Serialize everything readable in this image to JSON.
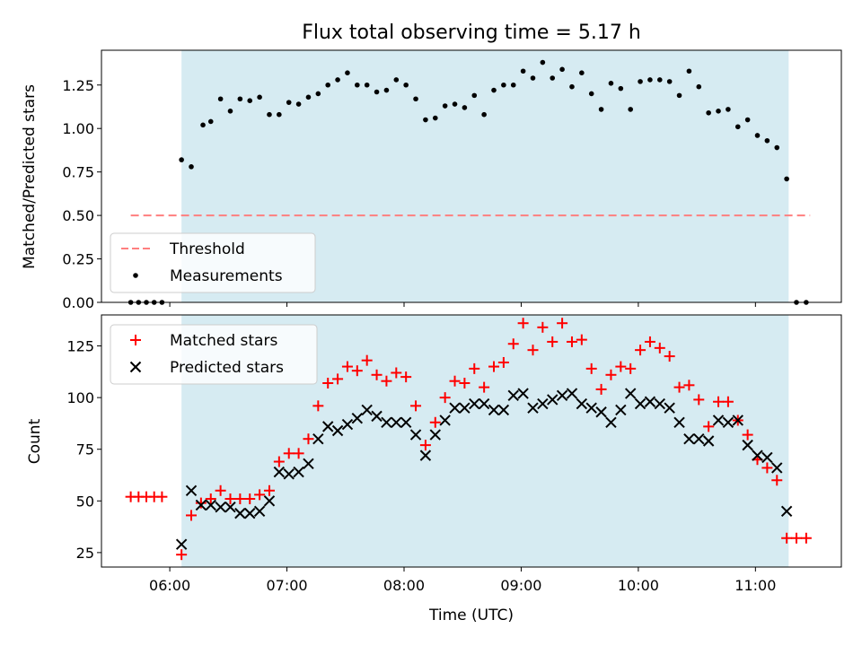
{
  "chart_data": [
    {
      "type": "scatter",
      "title": "Flux total observing time = 5.17 h",
      "xlabel": "",
      "ylabel": "Matched/Predicted stars",
      "ylim": [
        0,
        1.45
      ],
      "yticks": [
        0.0,
        0.25,
        0.5,
        0.75,
        1.0,
        1.25
      ],
      "ytick_labels": [
        "0.00",
        "0.25",
        "0.50",
        "0.75",
        "1.00",
        "1.25"
      ],
      "grid": false,
      "legend_position": "lower-left",
      "observing_window": {
        "start": "06:06",
        "end": "11:17",
        "color": "#add8e6"
      },
      "series": [
        {
          "name": "Threshold",
          "kind": "dashed-line",
          "color": "#ff7f7f",
          "x": [
            "05:40",
            "11:28"
          ],
          "y": [
            0.5,
            0.5
          ]
        },
        {
          "name": "Measurements",
          "kind": "dot",
          "color": "#000000",
          "x": [
            "05:40",
            "05:44",
            "05:48",
            "05:52",
            "05:56",
            "06:06",
            "06:11",
            "06:17",
            "06:21",
            "06:26",
            "06:31",
            "06:36",
            "06:41",
            "06:46",
            "06:51",
            "06:56",
            "07:01",
            "07:06",
            "07:11",
            "07:16",
            "07:21",
            "07:26",
            "07:31",
            "07:36",
            "07:41",
            "07:46",
            "07:51",
            "07:56",
            "08:01",
            "08:06",
            "08:11",
            "08:16",
            "08:21",
            "08:26",
            "08:31",
            "08:36",
            "08:41",
            "08:46",
            "08:51",
            "08:56",
            "09:01",
            "09:06",
            "09:11",
            "09:16",
            "09:21",
            "09:26",
            "09:31",
            "09:36",
            "09:41",
            "09:46",
            "09:51",
            "09:56",
            "10:01",
            "10:06",
            "10:11",
            "10:16",
            "10:21",
            "10:26",
            "10:31",
            "10:36",
            "10:41",
            "10:46",
            "10:51",
            "10:56",
            "11:01",
            "11:06",
            "11:11",
            "11:16",
            "11:21",
            "11:26"
          ],
          "y": [
            0.0,
            0.0,
            0.0,
            0.0,
            0.0,
            0.82,
            0.78,
            1.02,
            1.04,
            1.17,
            1.1,
            1.17,
            1.16,
            1.18,
            1.08,
            1.08,
            1.15,
            1.14,
            1.18,
            1.2,
            1.25,
            1.28,
            1.32,
            1.25,
            1.25,
            1.21,
            1.22,
            1.28,
            1.25,
            1.17,
            1.05,
            1.06,
            1.13,
            1.14,
            1.12,
            1.19,
            1.08,
            1.22,
            1.25,
            1.25,
            1.33,
            1.29,
            1.38,
            1.29,
            1.34,
            1.24,
            1.32,
            1.2,
            1.11,
            1.26,
            1.23,
            1.11,
            1.27,
            1.28,
            1.28,
            1.27,
            1.19,
            1.33,
            1.24,
            1.09,
            1.1,
            1.11,
            1.01,
            1.05,
            0.96,
            0.93,
            0.89,
            0.71,
            0.0,
            0.0
          ]
        }
      ]
    },
    {
      "type": "scatter",
      "title": "",
      "xlabel": "Time (UTC)",
      "ylabel": "Count",
      "ylim": [
        18,
        140
      ],
      "yticks": [
        25,
        50,
        75,
        100,
        125
      ],
      "ytick_labels": [
        "25",
        "50",
        "75",
        "100",
        "125"
      ],
      "x_range": [
        "05:25",
        "11:44"
      ],
      "xticks": [
        "06:00",
        "07:00",
        "08:00",
        "09:00",
        "10:00",
        "11:00"
      ],
      "xtick_labels": [
        "06:00",
        "07:00",
        "08:00",
        "09:00",
        "10:00",
        "11:00"
      ],
      "grid": false,
      "legend_position": "upper-left",
      "observing_window": {
        "start": "06:06",
        "end": "11:17",
        "color": "#add8e6"
      },
      "series": [
        {
          "name": "Matched stars",
          "marker": "plus",
          "color": "#ff0000",
          "x": [
            "05:40",
            "05:44",
            "05:48",
            "05:52",
            "05:56",
            "06:06",
            "06:11",
            "06:16",
            "06:21",
            "06:26",
            "06:31",
            "06:36",
            "06:41",
            "06:46",
            "06:51",
            "06:56",
            "07:01",
            "07:06",
            "07:11",
            "07:16",
            "07:21",
            "07:26",
            "07:31",
            "07:36",
            "07:41",
            "07:46",
            "07:51",
            "07:56",
            "08:01",
            "08:06",
            "08:11",
            "08:16",
            "08:21",
            "08:26",
            "08:31",
            "08:36",
            "08:41",
            "08:46",
            "08:51",
            "08:56",
            "09:01",
            "09:06",
            "09:11",
            "09:16",
            "09:21",
            "09:26",
            "09:31",
            "09:36",
            "09:41",
            "09:46",
            "09:51",
            "09:56",
            "10:01",
            "10:06",
            "10:11",
            "10:16",
            "10:21",
            "10:26",
            "10:31",
            "10:36",
            "10:41",
            "10:46",
            "10:51",
            "10:56",
            "11:01",
            "11:06",
            "11:11",
            "11:16",
            "11:21",
            "11:26"
          ],
          "y": [
            52,
            52,
            52,
            52,
            52,
            24,
            43,
            49,
            51,
            55,
            51,
            51,
            51,
            53,
            55,
            69,
            73,
            73,
            80,
            96,
            107,
            109,
            115,
            113,
            118,
            111,
            108,
            112,
            110,
            96,
            77,
            88,
            100,
            108,
            107,
            114,
            105,
            115,
            117,
            126,
            136,
            123,
            134,
            127,
            136,
            127,
            128,
            114,
            104,
            111,
            115,
            114,
            123,
            127,
            124,
            120,
            105,
            106,
            99,
            86,
            98,
            98,
            89,
            82,
            70,
            66,
            60,
            32,
            32,
            32
          ]
        },
        {
          "name": "Predicted stars",
          "marker": "x",
          "color": "#000000",
          "x": [
            "06:06",
            "06:11",
            "06:16",
            "06:21",
            "06:26",
            "06:31",
            "06:36",
            "06:41",
            "06:46",
            "06:51",
            "06:56",
            "07:01",
            "07:06",
            "07:11",
            "07:16",
            "07:21",
            "07:26",
            "07:31",
            "07:36",
            "07:41",
            "07:46",
            "07:51",
            "07:56",
            "08:01",
            "08:06",
            "08:11",
            "08:16",
            "08:21",
            "08:26",
            "08:31",
            "08:36",
            "08:41",
            "08:46",
            "08:51",
            "08:56",
            "09:01",
            "09:06",
            "09:11",
            "09:16",
            "09:21",
            "09:26",
            "09:31",
            "09:36",
            "09:41",
            "09:46",
            "09:51",
            "09:56",
            "10:01",
            "10:06",
            "10:11",
            "10:16",
            "10:21",
            "10:26",
            "10:31",
            "10:36",
            "10:41",
            "10:46",
            "10:51",
            "10:56",
            "11:01",
            "11:06",
            "11:11",
            "11:16"
          ],
          "y": [
            29,
            55,
            48,
            48,
            47,
            47,
            44,
            44,
            45,
            50,
            64,
            63,
            64,
            68,
            80,
            86,
            84,
            87,
            90,
            94,
            91,
            88,
            88,
            88,
            82,
            72,
            82,
            89,
            95,
            95,
            97,
            97,
            94,
            94,
            101,
            102,
            95,
            97,
            99,
            101,
            102,
            97,
            95,
            93,
            88,
            94,
            102,
            97,
            98,
            97,
            95,
            88,
            80,
            80,
            79,
            89,
            88,
            89,
            77,
            72,
            71,
            66,
            45
          ]
        }
      ]
    }
  ]
}
